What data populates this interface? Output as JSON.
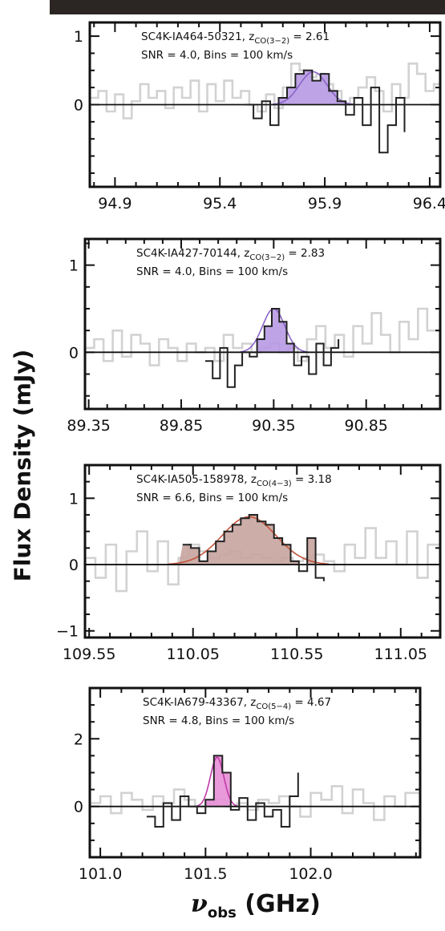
{
  "figure": {
    "ylabel": "Flux Density (mJy)",
    "xlabel_symbol": "ν",
    "xlabel_sub": "obs",
    "xlabel_unit": " (GHz)"
  },
  "colors": {
    "frame": "#111111",
    "data_line": "#222222",
    "gray_line": "#d2d2d2",
    "top_strip": "#2b2623"
  },
  "chart_data": [
    {
      "type": "line",
      "id": "panel1",
      "annotation_line1_prefix": "SC4K-IA464-50321, z",
      "annotation_line1_sub": "CO(3−2)",
      "annotation_line1_suffix": " = 2.61",
      "annotation_line2": "SNR = 4.0, Bins = 100 km/s",
      "fill_color": "#b79ae3",
      "fit_color": "#8a63c7",
      "xlim": [
        94.78,
        96.45
      ],
      "ylim": [
        -1.2,
        1.2
      ],
      "xticks": [
        94.9,
        95.4,
        95.9,
        96.4
      ],
      "xtick_labels": [
        "94.9",
        "95.4",
        "95.9",
        "96.4"
      ],
      "yticks": [
        0,
        1
      ],
      "ytick_labels": [
        "0",
        "1"
      ],
      "gray_x": [
        94.78,
        94.82,
        94.86,
        94.9,
        94.94,
        94.98,
        95.02,
        95.06,
        95.1,
        95.14,
        95.18,
        95.22,
        95.26,
        95.3,
        95.34,
        95.38,
        95.42,
        95.46,
        95.5,
        95.54,
        95.58,
        95.62,
        95.66,
        95.7,
        95.74,
        95.78,
        95.82,
        95.86,
        95.9,
        95.94,
        95.98,
        96.02,
        96.06,
        96.1,
        96.14,
        96.18,
        96.22,
        96.26,
        96.3,
        96.34,
        96.38,
        96.42,
        96.45
      ],
      "gray_y": [
        0.1,
        0.2,
        -0.1,
        0.15,
        -0.2,
        0.05,
        0.3,
        0.1,
        0.2,
        -0.05,
        0.25,
        0.1,
        0.35,
        -0.1,
        0.3,
        0.05,
        0.35,
        0.1,
        0.2,
        0.0,
        -0.1,
        0.15,
        -0.05,
        0.25,
        0.6,
        0.5,
        0.4,
        0.45,
        0.3,
        0.2,
        0.0,
        0.1,
        0.25,
        0.4,
        0.2,
        -0.1,
        0.3,
        0.1,
        0.6,
        0.45,
        0.2,
        0.3,
        0.1
      ],
      "data_x": [
        95.52,
        95.56,
        95.6,
        95.64,
        95.68,
        95.72,
        95.76,
        95.8,
        95.84,
        95.88,
        95.92,
        95.96,
        96.0,
        96.04,
        96.08,
        96.12,
        96.16,
        96.2,
        96.24,
        96.28
      ],
      "data_y": [
        0.0,
        -0.2,
        0.05,
        -0.3,
        0.1,
        0.25,
        0.45,
        0.5,
        0.35,
        0.45,
        0.2,
        0.05,
        -0.15,
        0.1,
        -0.3,
        0.25,
        -0.7,
        -0.3,
        0.1,
        -0.4
      ],
      "line_start": 95.52,
      "line_end": 96.3,
      "fit_center": 95.845,
      "fit_sigma": 0.065,
      "fit_amp": 0.48
    },
    {
      "type": "line",
      "id": "panel2",
      "annotation_line1_prefix": "SC4K-IA427-70144, z",
      "annotation_line1_sub": "CO(3−2)",
      "annotation_line1_suffix": " = 2.83",
      "annotation_line2": "SNR = 4.0, Bins = 100 km/s",
      "fill_color": "#b79ae3",
      "fit_color": "#8a63c7",
      "xlim": [
        89.33,
        91.25
      ],
      "ylim": [
        -0.65,
        1.3
      ],
      "xticks": [
        89.35,
        89.85,
        90.35,
        90.85
      ],
      "xtick_labels": [
        "89.35",
        "89.85",
        "90.35",
        "90.85"
      ],
      "yticks": [
        0,
        1
      ],
      "ytick_labels": [
        "0",
        "1"
      ],
      "gray_x": [
        89.33,
        89.38,
        89.43,
        89.48,
        89.53,
        89.58,
        89.63,
        89.68,
        89.73,
        89.78,
        89.83,
        89.88,
        89.93,
        89.98,
        90.03,
        90.08,
        90.13,
        90.18,
        90.23,
        90.28,
        90.33,
        90.38,
        90.43,
        90.48,
        90.53,
        90.58,
        90.63,
        90.68,
        90.73,
        90.78,
        90.83,
        90.88,
        90.93,
        90.98,
        91.03,
        91.08,
        91.13,
        91.18,
        91.25
      ],
      "gray_y": [
        0.05,
        0.15,
        -0.1,
        0.25,
        -0.05,
        0.2,
        0.1,
        -0.15,
        0.15,
        0.05,
        -0.1,
        0.1,
        0.0,
        0.05,
        -0.1,
        0.2,
        0.05,
        0.1,
        0.0,
        0.05,
        0.1,
        0.0,
        0.05,
        -0.1,
        0.15,
        0.3,
        0.05,
        0.2,
        -0.05,
        0.3,
        0.1,
        0.45,
        0.2,
        0.0,
        0.35,
        0.15,
        0.5,
        0.25,
        0.1
      ],
      "data_x": [
        89.98,
        90.02,
        90.06,
        90.1,
        90.14,
        90.18,
        90.22,
        90.26,
        90.3,
        90.34,
        90.38,
        90.42,
        90.46,
        90.5,
        90.54,
        90.58,
        90.62,
        90.66,
        90.7
      ],
      "data_y": [
        -0.1,
        -0.3,
        0.05,
        -0.4,
        -0.15,
        0.0,
        -0.05,
        0.15,
        0.3,
        0.5,
        0.35,
        0.1,
        -0.15,
        -0.05,
        -0.25,
        0.1,
        -0.15,
        0.05,
        0.15
      ],
      "line_start": 89.98,
      "line_end": 90.7,
      "fit_center": 90.35,
      "fit_sigma": 0.06,
      "fit_amp": 0.5
    },
    {
      "type": "line",
      "id": "panel3",
      "annotation_line1_prefix": "SC4K-IA505-158978, z",
      "annotation_line1_sub": "CO(4−3)",
      "annotation_line1_suffix": " = 3.18",
      "annotation_line2": "SNR = 6.6, Bins = 100 km/s",
      "fill_color": "#c7a49e",
      "fit_color": "#c4543a",
      "xlim": [
        109.53,
        111.24
      ],
      "ylim": [
        -1.1,
        1.5
      ],
      "xticks": [
        109.55,
        110.05,
        110.55,
        111.05
      ],
      "xtick_labels": [
        "109.55",
        "110.05",
        "110.55",
        "111.05"
      ],
      "yticks": [
        -1,
        0,
        1
      ],
      "ytick_labels": [
        "−1",
        "0",
        "1"
      ],
      "gray_x": [
        109.53,
        109.58,
        109.63,
        109.68,
        109.73,
        109.78,
        109.83,
        109.88,
        109.93,
        109.98,
        110.03,
        110.08,
        110.13,
        110.18,
        110.23,
        110.28,
        110.33,
        110.38,
        110.43,
        110.48,
        110.53,
        110.58,
        110.63,
        110.68,
        110.73,
        110.78,
        110.83,
        110.88,
        110.93,
        110.98,
        111.03,
        111.08,
        111.13,
        111.18,
        111.24
      ],
      "gray_y": [
        0.1,
        -0.2,
        0.3,
        -0.4,
        0.2,
        0.5,
        -0.1,
        0.35,
        -0.3,
        0.1,
        0.3,
        0.2,
        0.1,
        0.15,
        0.2,
        0.1,
        0.15,
        0.1,
        0.05,
        0.1,
        0.05,
        0.1,
        0.15,
        0.05,
        -0.1,
        0.3,
        0.1,
        0.55,
        0.1,
        0.35,
        0.0,
        0.5,
        -0.2,
        0.3,
        0.1
      ],
      "data_x": [
        110.0,
        110.04,
        110.08,
        110.12,
        110.16,
        110.2,
        110.24,
        110.28,
        110.32,
        110.36,
        110.4,
        110.44,
        110.48,
        110.52,
        110.56,
        110.6,
        110.64,
        110.68
      ],
      "data_y": [
        0.3,
        0.25,
        0.05,
        0.2,
        0.35,
        0.5,
        0.6,
        0.7,
        0.75,
        0.65,
        0.6,
        0.4,
        0.3,
        0.05,
        -0.1,
        0.4,
        -0.2,
        -0.25
      ],
      "line_start": 110.0,
      "line_end": 110.68,
      "fit_center": 110.32,
      "fit_sigma": 0.13,
      "fit_amp": 0.72
    },
    {
      "type": "line",
      "id": "panel4",
      "annotation_line1_prefix": "SC4K-IA679-43367, z",
      "annotation_line1_sub": "CO(5−4)",
      "annotation_line1_suffix": " = 4.67",
      "annotation_line2": "SNR = 4.8, Bins = 100 km/s",
      "fill_color": "#e58fd6",
      "fit_color": "#c03aa8",
      "xlim": [
        100.95,
        102.52
      ],
      "ylim": [
        -1.5,
        3.5
      ],
      "xticks": [
        101.0,
        101.5,
        102.0
      ],
      "xtick_labels": [
        "101.0",
        "101.5",
        "102.0"
      ],
      "yticks": [
        0,
        2
      ],
      "ytick_labels": [
        "0",
        "2"
      ],
      "gray_x": [
        100.95,
        101.0,
        101.05,
        101.1,
        101.15,
        101.2,
        101.25,
        101.3,
        101.35,
        101.4,
        101.45,
        101.5,
        101.55,
        101.6,
        101.65,
        101.7,
        101.75,
        101.8,
        101.85,
        101.9,
        101.95,
        102.0,
        102.05,
        102.1,
        102.15,
        102.2,
        102.25,
        102.3,
        102.35,
        102.4,
        102.45,
        102.52
      ],
      "gray_y": [
        0.1,
        0.3,
        -0.2,
        0.4,
        0.2,
        -0.1,
        0.3,
        0.1,
        0.5,
        0.2,
        0.0,
        0.1,
        0.2,
        0.0,
        0.1,
        -0.1,
        0.2,
        0.1,
        0.3,
        0.0,
        -0.3,
        0.4,
        0.2,
        0.6,
        -0.2,
        0.5,
        0.1,
        -0.4,
        0.3,
        0.0,
        0.4,
        0.1
      ],
      "data_x": [
        101.22,
        101.26,
        101.3,
        101.34,
        101.38,
        101.42,
        101.46,
        101.5,
        101.54,
        101.58,
        101.62,
        101.66,
        101.7,
        101.74,
        101.78,
        101.82,
        101.86,
        101.9,
        101.94
      ],
      "data_y": [
        -0.3,
        -0.6,
        0.1,
        -0.4,
        0.3,
        0.0,
        -0.2,
        0.2,
        1.5,
        1.0,
        -0.1,
        0.25,
        -0.4,
        0.1,
        -0.3,
        -0.1,
        -0.6,
        0.3,
        1.0
      ],
      "line_start": 101.22,
      "line_end": 101.94,
      "fit_center": 101.555,
      "fit_sigma": 0.032,
      "fit_amp": 1.45
    }
  ]
}
